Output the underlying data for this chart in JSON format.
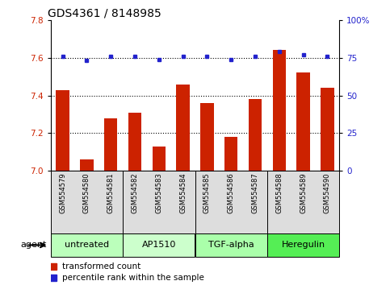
{
  "title": "GDS4361 / 8148985",
  "samples": [
    "GSM554579",
    "GSM554580",
    "GSM554581",
    "GSM554582",
    "GSM554583",
    "GSM554584",
    "GSM554585",
    "GSM554586",
    "GSM554587",
    "GSM554588",
    "GSM554589",
    "GSM554590"
  ],
  "red_values": [
    7.43,
    7.06,
    7.28,
    7.31,
    7.13,
    7.46,
    7.36,
    7.18,
    7.38,
    7.64,
    7.52,
    7.44
  ],
  "blue_values": [
    76,
    73,
    76,
    76,
    74,
    76,
    76,
    74,
    76,
    79,
    77,
    76
  ],
  "ylim_left": [
    7.0,
    7.8
  ],
  "ylim_right": [
    0,
    100
  ],
  "yticks_left": [
    7.0,
    7.2,
    7.4,
    7.6,
    7.8
  ],
  "yticks_right": [
    0,
    25,
    50,
    75,
    100
  ],
  "bar_color": "#cc2200",
  "dot_color": "#2222cc",
  "bg_color": "#ffffff",
  "groups": [
    {
      "label": "untreated",
      "start": 0,
      "end": 3,
      "color": "#bbffbb"
    },
    {
      "label": "AP1510",
      "start": 3,
      "end": 6,
      "color": "#ccffcc"
    },
    {
      "label": "TGF-alpha",
      "start": 6,
      "end": 9,
      "color": "#aaffaa"
    },
    {
      "label": "Heregulin",
      "start": 9,
      "end": 12,
      "color": "#55ee55"
    }
  ],
  "agent_label": "agent",
  "legend_red": "transformed count",
  "legend_blue": "percentile rank within the sample",
  "title_fontsize": 10,
  "tick_fontsize": 7.5,
  "sample_fontsize": 6,
  "group_fontsize": 8,
  "legend_fontsize": 7.5
}
